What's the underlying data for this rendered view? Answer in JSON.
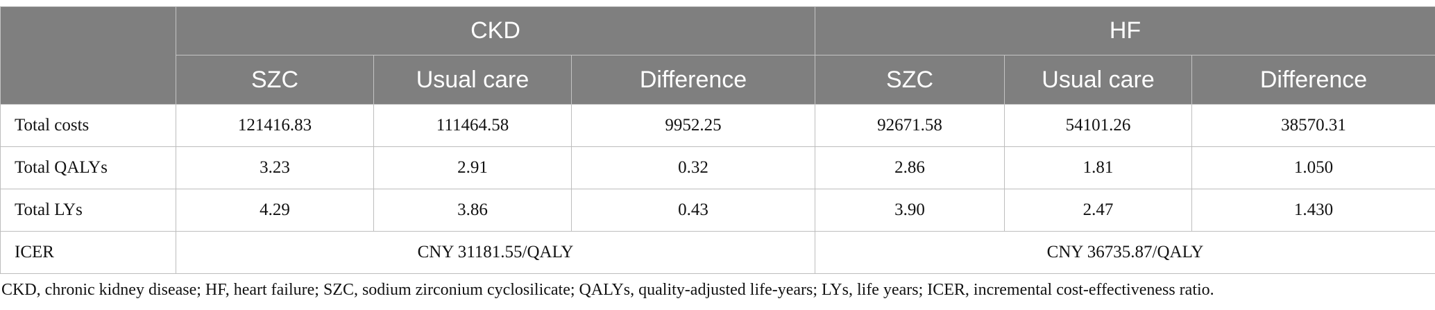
{
  "table": {
    "header": {
      "groups": [
        "CKD",
        "HF"
      ],
      "columns": [
        "SZC",
        "Usual care",
        "Difference",
        "SZC",
        "Usual care",
        "Difference"
      ]
    },
    "rows": [
      [
        "Total costs",
        "121416.83",
        "111464.58",
        "9952.25",
        "92671.58",
        "54101.26",
        "38570.31"
      ],
      [
        "Total QALYs",
        "3.23",
        "2.91",
        "0.32",
        "2.86",
        "1.81",
        "1.050"
      ],
      [
        "Total LYs",
        "4.29",
        "3.86",
        "0.43",
        "3.90",
        "2.47",
        "1.430"
      ],
      [
        "ICER",
        "CNY 31181.55/QALY",
        "CNY 36735.87/QALY"
      ]
    ]
  },
  "footnote": "CKD, chronic kidney disease; HF, heart failure; SZC, sodium zirconium cyclosilicate; QALYs, quality-adjusted life-years; LYs, life years; ICER, incremental cost-effectiveness ratio."
}
